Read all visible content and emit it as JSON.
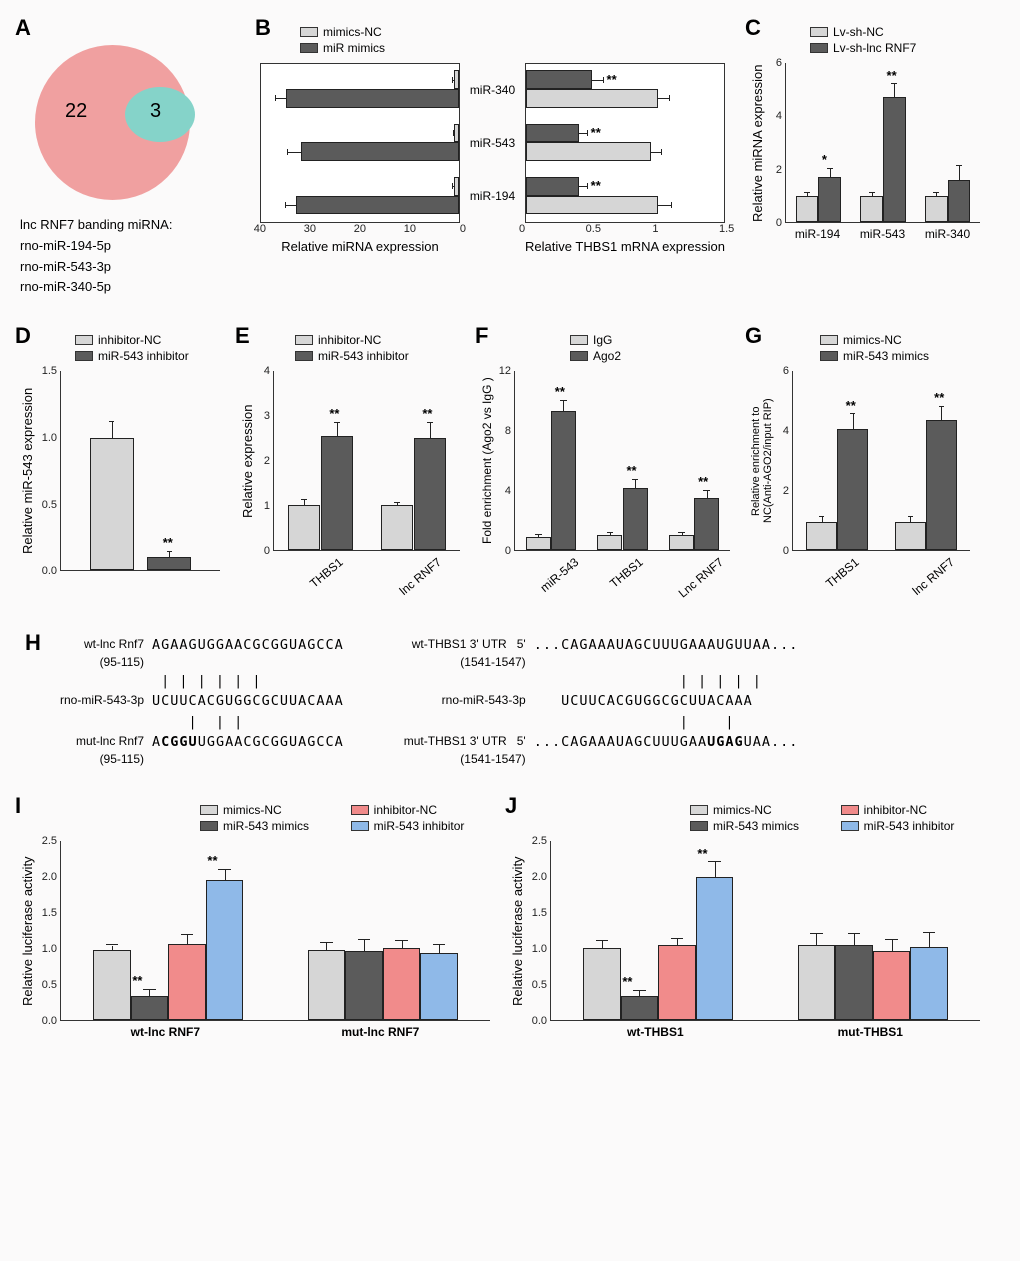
{
  "palette": {
    "light_gray": "#d6d6d6",
    "dark_gray": "#5b5b5b",
    "coral": "#f18b8b",
    "blue": "#8fb9e8",
    "axis": "#333333",
    "bg": "#fbfafa",
    "venn_pink": "#f0a0a0",
    "venn_teal": "#85d3c9"
  },
  "typography": {
    "label_fontsize": 13,
    "tick_fontsize": 11,
    "panel_label_fontsize": 22
  },
  "A": {
    "label": "A",
    "n_outer": "22",
    "n_inner": "3",
    "caption_title": "lnc RNF7 banding miRNA:",
    "mirnas": [
      "rno-miR-194-5p",
      "rno-miR-543-3p",
      "rno-miR-340-5p"
    ]
  },
  "B": {
    "label": "B",
    "legend": [
      {
        "label": "mimics-NC",
        "color": "#d6d6d6"
      },
      {
        "label": "miR mimics",
        "color": "#5b5b5b"
      }
    ],
    "left": {
      "type": "bar-horizontal-reversed",
      "categories": [
        "miR-340",
        "miR-543",
        "miR-194"
      ],
      "series": [
        {
          "name": "mimics-NC",
          "values": [
            1,
            1,
            1
          ],
          "err": [
            0.15,
            0.1,
            0.15
          ],
          "color": "#d6d6d6"
        },
        {
          "name": "miR mimics",
          "values": [
            35,
            32,
            33
          ],
          "err": [
            2,
            2.5,
            2
          ],
          "color": "#5b5b5b"
        }
      ],
      "xlim": [
        0,
        40
      ],
      "xticks": [
        40,
        30,
        20,
        10,
        0
      ],
      "xlabel": "Relative miRNA expression"
    },
    "right": {
      "type": "bar-horizontal",
      "categories": [
        "miR-340",
        "miR-543",
        "miR-194"
      ],
      "series": [
        {
          "name": "miR mimics",
          "values": [
            0.5,
            0.4,
            0.4
          ],
          "err": [
            0.08,
            0.06,
            0.06
          ],
          "color": "#5b5b5b",
          "sig": [
            "**",
            "**",
            "**"
          ]
        },
        {
          "name": "mimics-NC",
          "values": [
            1.0,
            0.95,
            1.0
          ],
          "err": [
            0.08,
            0.07,
            0.1
          ],
          "color": "#d6d6d6"
        }
      ],
      "xlim": [
        0,
        1.5
      ],
      "xticks": [
        0,
        0.5,
        1.0,
        1.5
      ],
      "xlabel": "Relative THBS1 mRNA expression"
    }
  },
  "C": {
    "label": "C",
    "legend": [
      {
        "label": "Lv-sh-NC",
        "color": "#d6d6d6"
      },
      {
        "label": "Lv-sh-lnc RNF7",
        "color": "#5b5b5b"
      }
    ],
    "type": "bar-grouped",
    "categories": [
      "miR-194",
      "miR-543",
      "miR-340"
    ],
    "ylim": [
      0,
      6
    ],
    "yticks": [
      0,
      2,
      4,
      6
    ],
    "ylabel": "Relative  miRNA expression",
    "series": [
      {
        "name": "Lv-sh-NC",
        "color": "#d6d6d6",
        "values": [
          1.0,
          1.0,
          1.0
        ],
        "err": [
          0.1,
          0.1,
          0.1
        ]
      },
      {
        "name": "Lv-sh-lnc RNF7",
        "color": "#5b5b5b",
        "values": [
          1.7,
          4.7,
          1.6
        ],
        "err": [
          0.3,
          0.5,
          0.5
        ],
        "sig": [
          "*",
          "**",
          ""
        ]
      }
    ]
  },
  "D": {
    "label": "D",
    "legend": [
      {
        "label": "inhibitor-NC",
        "color": "#d6d6d6"
      },
      {
        "label": "miR-543 inhibitor",
        "color": "#5b5b5b"
      }
    ],
    "type": "bar-single-pair",
    "ylim": [
      0,
      1.5
    ],
    "yticks": [
      0.0,
      0.5,
      1.0,
      1.5
    ],
    "ylabel": "Relative  miR-543 expression",
    "series": [
      {
        "name": "inhibitor-NC",
        "color": "#d6d6d6",
        "value": 1.0,
        "err": 0.12
      },
      {
        "name": "miR-543 inhibitor",
        "color": "#5b5b5b",
        "value": 0.1,
        "err": 0.04,
        "sig": "**"
      }
    ]
  },
  "E": {
    "label": "E",
    "legend": [
      {
        "label": "inhibitor-NC",
        "color": "#d6d6d6"
      },
      {
        "label": "miR-543 inhibitor",
        "color": "#5b5b5b"
      }
    ],
    "type": "bar-grouped",
    "categories": [
      "THBS1",
      "lnc RNF7"
    ],
    "ylim": [
      0,
      4
    ],
    "yticks": [
      0,
      1,
      2,
      3,
      4
    ],
    "ylabel": "Relative  expression",
    "series": [
      {
        "name": "inhibitor-NC",
        "color": "#d6d6d6",
        "values": [
          1.0,
          1.0
        ],
        "err": [
          0.12,
          0.06
        ]
      },
      {
        "name": "miR-543 inhibitor",
        "color": "#5b5b5b",
        "values": [
          2.55,
          2.5
        ],
        "err": [
          0.3,
          0.35
        ],
        "sig": [
          "**",
          "**"
        ]
      }
    ]
  },
  "F": {
    "label": "F",
    "legend": [
      {
        "label": "IgG",
        "color": "#d6d6d6"
      },
      {
        "label": "Ago2",
        "color": "#5b5b5b"
      }
    ],
    "type": "bar-grouped",
    "categories": [
      "miR-543",
      "THBS1",
      "Lnc RNF7"
    ],
    "ylim": [
      0,
      12
    ],
    "yticks": [
      0,
      4,
      8,
      12
    ],
    "ylabel": "Fold enrichment (Ago2 vs IgG )",
    "series": [
      {
        "name": "IgG",
        "color": "#d6d6d6",
        "values": [
          0.9,
          1.0,
          1.0
        ],
        "err": [
          0.15,
          0.15,
          0.15
        ]
      },
      {
        "name": "Ago2",
        "color": "#5b5b5b",
        "values": [
          9.3,
          4.2,
          3.5
        ],
        "err": [
          0.7,
          0.5,
          0.5
        ],
        "sig": [
          "**",
          "**",
          "**"
        ]
      }
    ]
  },
  "G": {
    "label": "G",
    "legend": [
      {
        "label": "mimics-NC",
        "color": "#d6d6d6"
      },
      {
        "label": "miR-543 mimics",
        "color": "#5b5b5b"
      }
    ],
    "type": "bar-grouped",
    "categories": [
      "THBS1",
      "lnc RNF7"
    ],
    "ylim": [
      0,
      6
    ],
    "yticks": [
      0,
      2,
      4,
      6
    ],
    "ylabel": "Relative enrichment to\nNC(Anti-AGO2/input RIP)",
    "series": [
      {
        "name": "mimics-NC",
        "color": "#d6d6d6",
        "values": [
          0.95,
          0.95
        ],
        "err": [
          0.15,
          0.15
        ]
      },
      {
        "name": "miR-543 mimics",
        "color": "#5b5b5b",
        "values": [
          4.05,
          4.35
        ],
        "err": [
          0.5,
          0.45
        ],
        "sig": [
          "**",
          "**"
        ]
      }
    ]
  },
  "H": {
    "label": "H",
    "left": {
      "rows": [
        {
          "lbl": "wt-lnc Rnf7\n(95-115)",
          "seq": "AGAAGUGGAACGCGGUAGCCA"
        },
        {
          "lbl": "",
          "pairs": " | | | | | |"
        },
        {
          "lbl": "rno-miR-543-3p",
          "seq": "UCUUCACGUGGCGCUUACAAA"
        },
        {
          "lbl": "",
          "pairs": "    |  | |"
        },
        {
          "lbl": "mut-lnc Rnf7\n(95-115)",
          "seq": "A",
          "bold": "CGGU",
          "seq2": "UGGAACGCGGUAGCCA"
        }
      ]
    },
    "right": {
      "rows": [
        {
          "lbl": "wt-THBS1 3' UTR   5'\n(1541-1547)",
          "seq": "...CAGAAAUAGCUUUGAAAUGUUAA..."
        },
        {
          "lbl": "",
          "pairs": "                | | | | |"
        },
        {
          "lbl": "rno-miR-543-3p",
          "seq": "   UCUUCACGUGGCGCUUACAAA"
        },
        {
          "lbl": "",
          "pairs": "                |    |"
        },
        {
          "lbl": "mut-THBS1 3' UTR   5'\n(1541-1547)",
          "seq": "...CAGAAAUAGCUUUGAA",
          "bold": "UGAG",
          "seq2": "UAA..."
        }
      ]
    }
  },
  "I": {
    "label": "I",
    "legend": [
      {
        "label": "mimics-NC",
        "color": "#d6d6d6"
      },
      {
        "label": "miR-543 mimics",
        "color": "#5b5b5b"
      },
      {
        "label": "inhibitor-NC",
        "color": "#f18b8b"
      },
      {
        "label": "miR-543 inhibitor",
        "color": "#8fb9e8"
      }
    ],
    "type": "bar-grouped4",
    "categories": [
      "wt-lnc RNF7",
      "mut-lnc RNF7"
    ],
    "ylim": [
      0,
      2.5
    ],
    "yticks": [
      0.0,
      0.5,
      1.0,
      1.5,
      2.0,
      2.5
    ],
    "ylabel": "Relative luciferase activity",
    "series": [
      {
        "name": "mimics-NC",
        "color": "#d6d6d6",
        "values": [
          0.98,
          0.98
        ],
        "err": [
          0.06,
          0.1
        ]
      },
      {
        "name": "miR-543 mimics",
        "color": "#5b5b5b",
        "values": [
          0.34,
          0.96
        ],
        "err": [
          0.08,
          0.15
        ],
        "sig": [
          "**",
          ""
        ]
      },
      {
        "name": "inhibitor-NC",
        "color": "#f18b8b",
        "values": [
          1.06,
          1.0
        ],
        "err": [
          0.12,
          0.1
        ]
      },
      {
        "name": "miR-543 inhibitor",
        "color": "#8fb9e8",
        "values": [
          1.95,
          0.94
        ],
        "err": [
          0.15,
          0.1
        ],
        "sig": [
          "**",
          ""
        ]
      }
    ]
  },
  "J": {
    "label": "J",
    "legend": [
      {
        "label": "mimics-NC",
        "color": "#d6d6d6"
      },
      {
        "label": "miR-543 mimics",
        "color": "#5b5b5b"
      },
      {
        "label": "inhibitor-NC",
        "color": "#f18b8b"
      },
      {
        "label": "miR-543 inhibitor",
        "color": "#8fb9e8"
      }
    ],
    "type": "bar-grouped4",
    "categories": [
      "wt-THBS1",
      "mut-THBS1"
    ],
    "ylim": [
      0,
      2.5
    ],
    "yticks": [
      0.0,
      0.5,
      1.0,
      1.5,
      2.0,
      2.5
    ],
    "ylabel": "Relative luciferase activity",
    "series": [
      {
        "name": "mimics-NC",
        "color": "#d6d6d6",
        "values": [
          1.0,
          1.05
        ],
        "err": [
          0.1,
          0.15
        ]
      },
      {
        "name": "miR-543 mimics",
        "color": "#5b5b5b",
        "values": [
          0.33,
          1.05
        ],
        "err": [
          0.08,
          0.15
        ],
        "sig": [
          "**",
          ""
        ]
      },
      {
        "name": "inhibitor-NC",
        "color": "#f18b8b",
        "values": [
          1.05,
          0.96
        ],
        "err": [
          0.08,
          0.15
        ]
      },
      {
        "name": "miR-543 inhibitor",
        "color": "#8fb9e8",
        "values": [
          2.0,
          1.02
        ],
        "err": [
          0.2,
          0.2
        ],
        "sig": [
          "**",
          ""
        ]
      }
    ]
  }
}
